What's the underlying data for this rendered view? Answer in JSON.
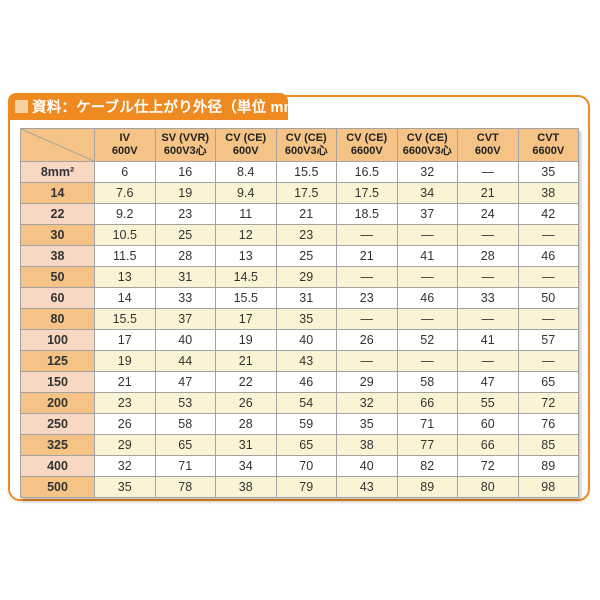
{
  "panel": {
    "title": "資料：ケーブル仕上がり外径（単位 mm）"
  },
  "chart_data": {
    "type": "table",
    "title": "資料：ケーブル仕上がり外径（単位 mm）",
    "unit": "mm",
    "columns": [
      {
        "line1": "IV",
        "line2": "600V"
      },
      {
        "line1": "SV (VVR)",
        "line2": "600V3心"
      },
      {
        "line1": "CV (CE)",
        "line2": "600V"
      },
      {
        "line1": "CV (CE)",
        "line2": "600V3心"
      },
      {
        "line1": "CV (CE)",
        "line2": "6600V"
      },
      {
        "line1": "CV (CE)",
        "line2": "6600V3心"
      },
      {
        "line1": "CVT",
        "line2": "600V"
      },
      {
        "line1": "CVT",
        "line2": "6600V"
      }
    ],
    "rows": [
      {
        "size": "8mm²",
        "values": [
          "6",
          "16",
          "8.4",
          "15.5",
          "16.5",
          "32",
          "—",
          "35"
        ]
      },
      {
        "size": "14",
        "values": [
          "7.6",
          "19",
          "9.4",
          "17.5",
          "17.5",
          "34",
          "21",
          "38"
        ]
      },
      {
        "size": "22",
        "values": [
          "9.2",
          "23",
          "11",
          "21",
          "18.5",
          "37",
          "24",
          "42"
        ]
      },
      {
        "size": "30",
        "values": [
          "10.5",
          "25",
          "12",
          "23",
          "—",
          "—",
          "—",
          "—"
        ]
      },
      {
        "size": "38",
        "values": [
          "11.5",
          "28",
          "13",
          "25",
          "21",
          "41",
          "28",
          "46"
        ]
      },
      {
        "size": "50",
        "values": [
          "13",
          "31",
          "14.5",
          "29",
          "—",
          "—",
          "—",
          "—"
        ]
      },
      {
        "size": "60",
        "values": [
          "14",
          "33",
          "15.5",
          "31",
          "23",
          "46",
          "33",
          "50"
        ]
      },
      {
        "size": "80",
        "values": [
          "15.5",
          "37",
          "17",
          "35",
          "—",
          "—",
          "—",
          "—"
        ]
      },
      {
        "size": "100",
        "values": [
          "17",
          "40",
          "19",
          "40",
          "26",
          "52",
          "41",
          "57"
        ]
      },
      {
        "size": "125",
        "values": [
          "19",
          "44",
          "21",
          "43",
          "—",
          "—",
          "—",
          "—"
        ]
      },
      {
        "size": "150",
        "values": [
          "21",
          "47",
          "22",
          "46",
          "29",
          "58",
          "47",
          "65"
        ]
      },
      {
        "size": "200",
        "values": [
          "23",
          "53",
          "26",
          "54",
          "32",
          "66",
          "55",
          "72"
        ]
      },
      {
        "size": "250",
        "values": [
          "26",
          "58",
          "28",
          "59",
          "35",
          "71",
          "60",
          "76"
        ]
      },
      {
        "size": "325",
        "values": [
          "29",
          "65",
          "31",
          "65",
          "38",
          "77",
          "66",
          "85"
        ]
      },
      {
        "size": "400",
        "values": [
          "32",
          "71",
          "34",
          "70",
          "40",
          "82",
          "72",
          "89"
        ]
      },
      {
        "size": "500",
        "values": [
          "35",
          "78",
          "38",
          "79",
          "43",
          "89",
          "80",
          "98"
        ]
      }
    ]
  },
  "colors": {
    "frame_orange": "#ee8a1f",
    "title_bullet": "#f6d2a2",
    "header_bg": "#f4c385",
    "row_header_pink": "#f8d7c3",
    "row_header_tan": "#f4c385",
    "row_white": "#ffffff",
    "row_cream": "#fbf4d4",
    "grid_line": "#a2a2a2",
    "text": "#333333"
  }
}
